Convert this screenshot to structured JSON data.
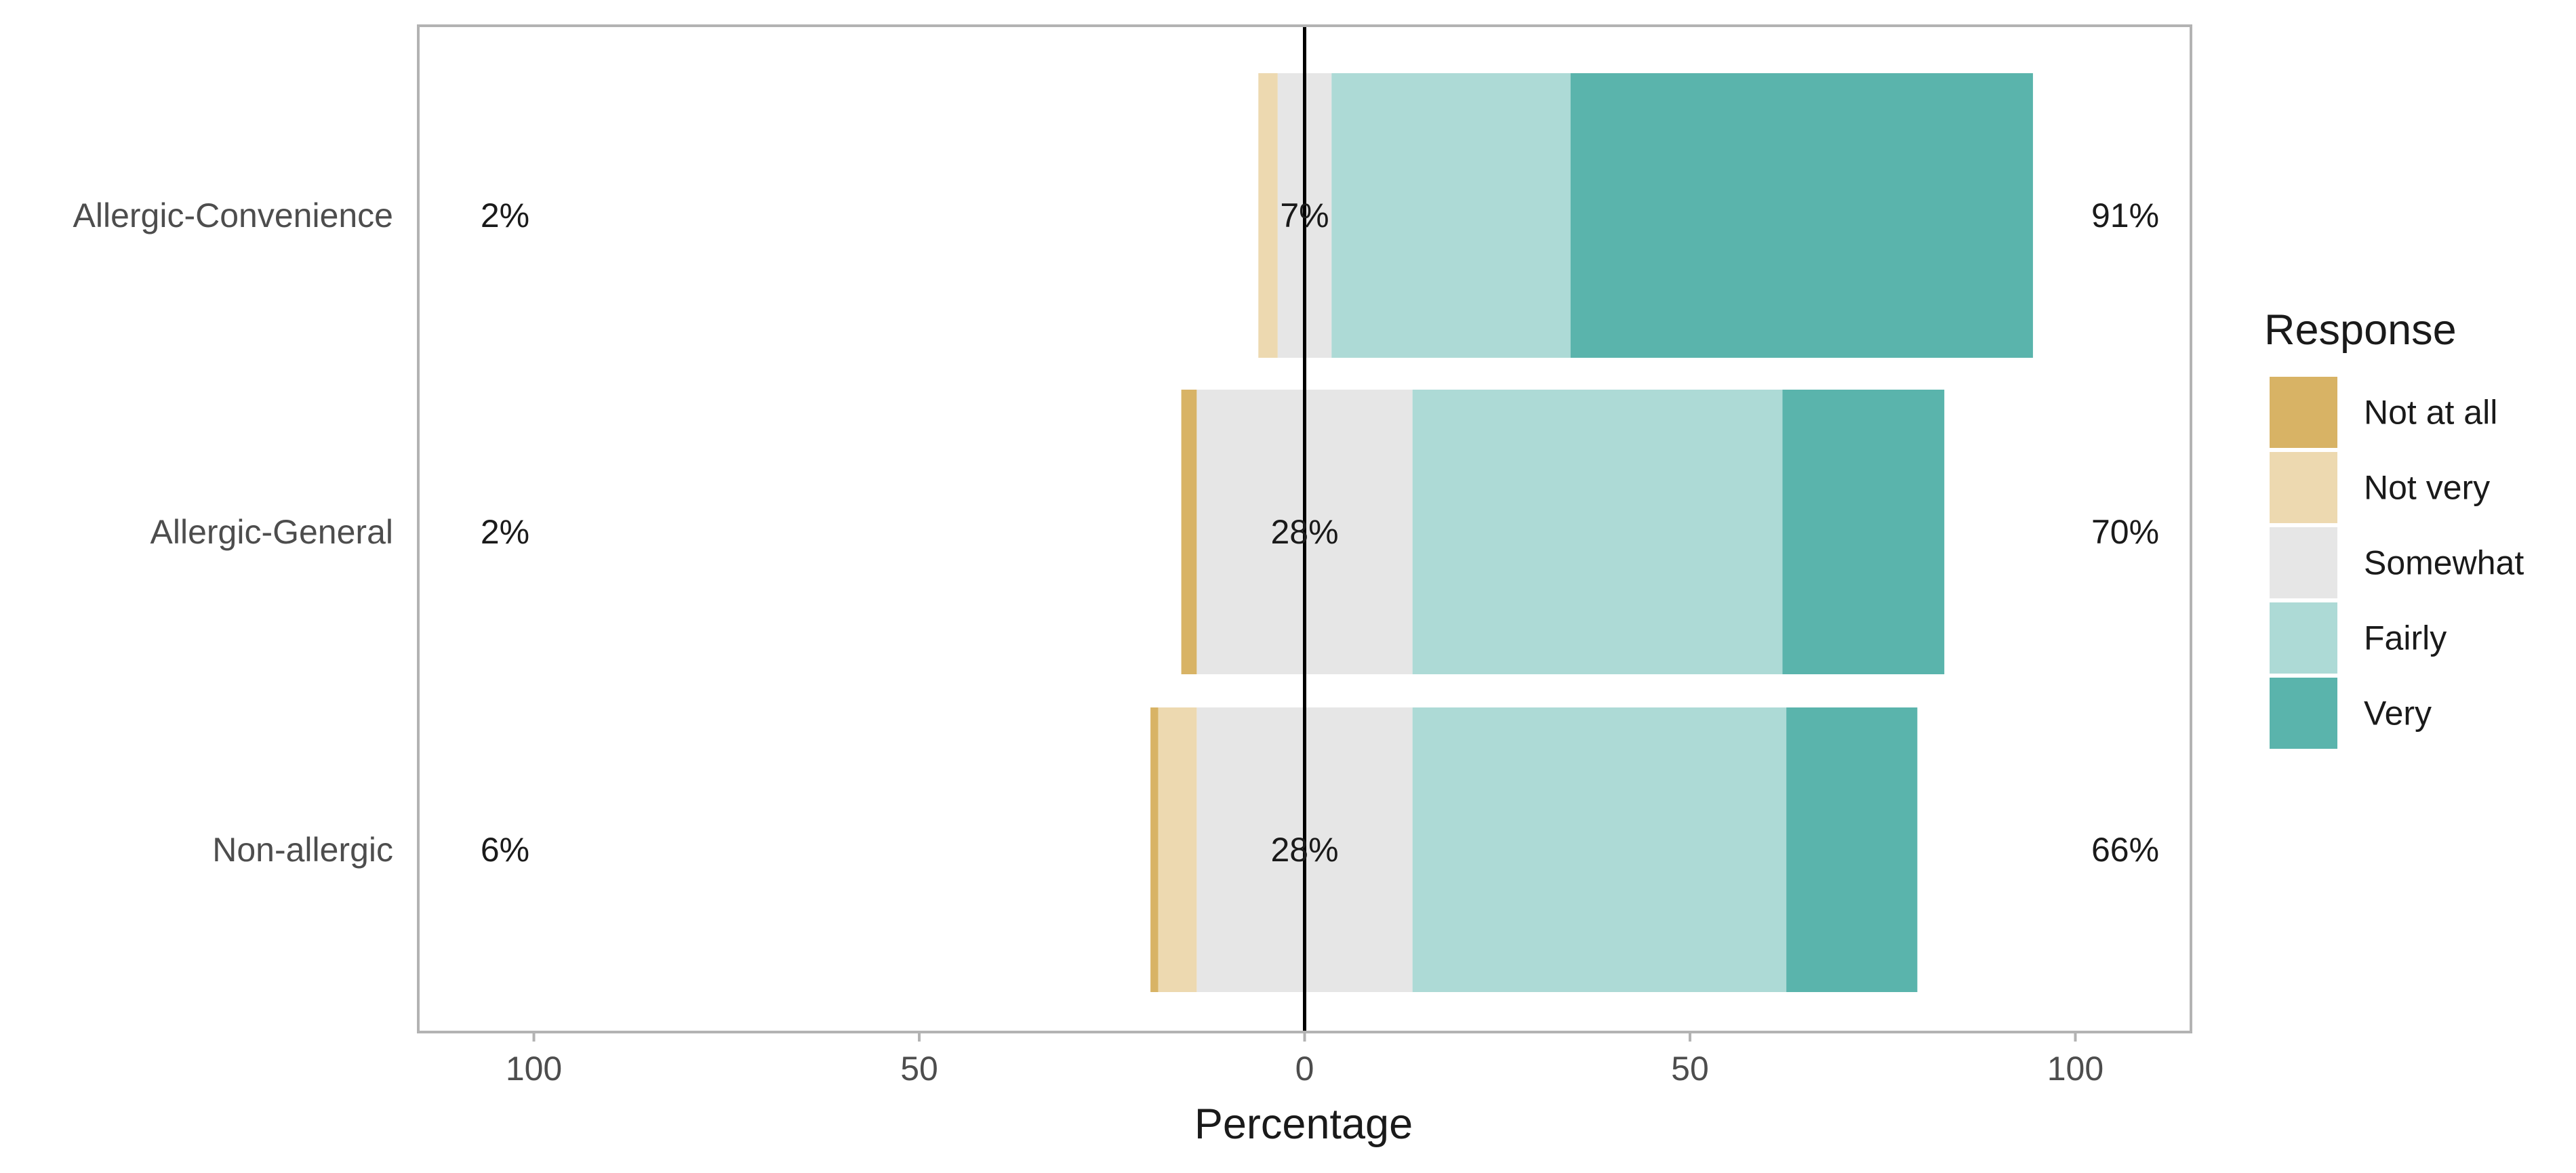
{
  "chart_data": {
    "type": "bar",
    "orientation": "horizontal",
    "stacking": "diverging",
    "xlabel": "Percentage",
    "xlim": [
      -115,
      115
    ],
    "x_ticks": [
      -100,
      -50,
      0,
      50,
      100
    ],
    "x_tick_labels": [
      "100",
      "50",
      "0",
      "50",
      "100"
    ],
    "grid": false,
    "legend_title": "Response",
    "legend_position": "right",
    "categories": [
      "Allergic-Convenience",
      "Allergic-General",
      "Non-allergic"
    ],
    "series": [
      {
        "name": "Not at all",
        "color": "#D8B365",
        "values": [
          0,
          2,
          1
        ]
      },
      {
        "name": "Not very",
        "color": "#EDD9B0",
        "values": [
          2.5,
          0,
          5
        ]
      },
      {
        "name": "Somewhat",
        "color": "#E6E6E6",
        "values": [
          7,
          28,
          28
        ]
      },
      {
        "name": "Fairly",
        "color": "#ADDAD6",
        "values": [
          31,
          48,
          48.5
        ]
      },
      {
        "name": "Very",
        "color": "#5AB4AC",
        "values": [
          60,
          21,
          17
        ]
      }
    ],
    "left_totals": [
      "2%",
      "2%",
      "6%"
    ],
    "center_labels": [
      "7%",
      "28%",
      "28%"
    ],
    "right_totals": [
      "91%",
      "70%",
      "66%"
    ]
  }
}
